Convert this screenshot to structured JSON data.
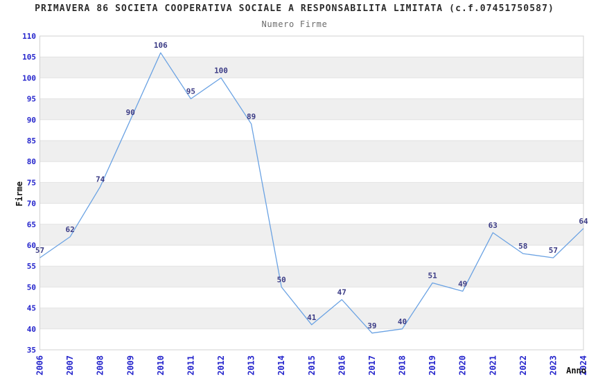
{
  "chart_data": {
    "type": "line",
    "title": "PRIMAVERA 86 SOCIETA COOPERATIVA SOCIALE A RESPONSABILITA LIMITATA (c.f.07451750587)",
    "subtitle": "Numero Firme",
    "xlabel": "Anno",
    "ylabel": "Firme",
    "categories": [
      "2006",
      "2007",
      "2008",
      "2009",
      "2010",
      "2011",
      "2012",
      "2013",
      "2014",
      "2015",
      "2016",
      "2017",
      "2018",
      "2019",
      "2020",
      "2021",
      "2022",
      "2023",
      "2024"
    ],
    "values": [
      57,
      62,
      74,
      90,
      106,
      95,
      100,
      89,
      50,
      41,
      47,
      39,
      40,
      51,
      49,
      63,
      58,
      57,
      64
    ],
    "ylim": [
      35,
      110
    ],
    "ytick_step": 5,
    "grid": "horizontal-alternating-bands",
    "legend": "none",
    "point_labels_visible": true,
    "colors": {
      "line": "#6aa2e3",
      "tick_labels": "#2424cc",
      "point_labels": "#3b3b85",
      "band": "#efefef",
      "gridline": "#e2e2e2",
      "plot_border": "#d0d0d0",
      "title": "#2b2b2b",
      "subtitle": "#6b6b6b",
      "axis_label": "#111111",
      "background": "#ffffff"
    }
  }
}
